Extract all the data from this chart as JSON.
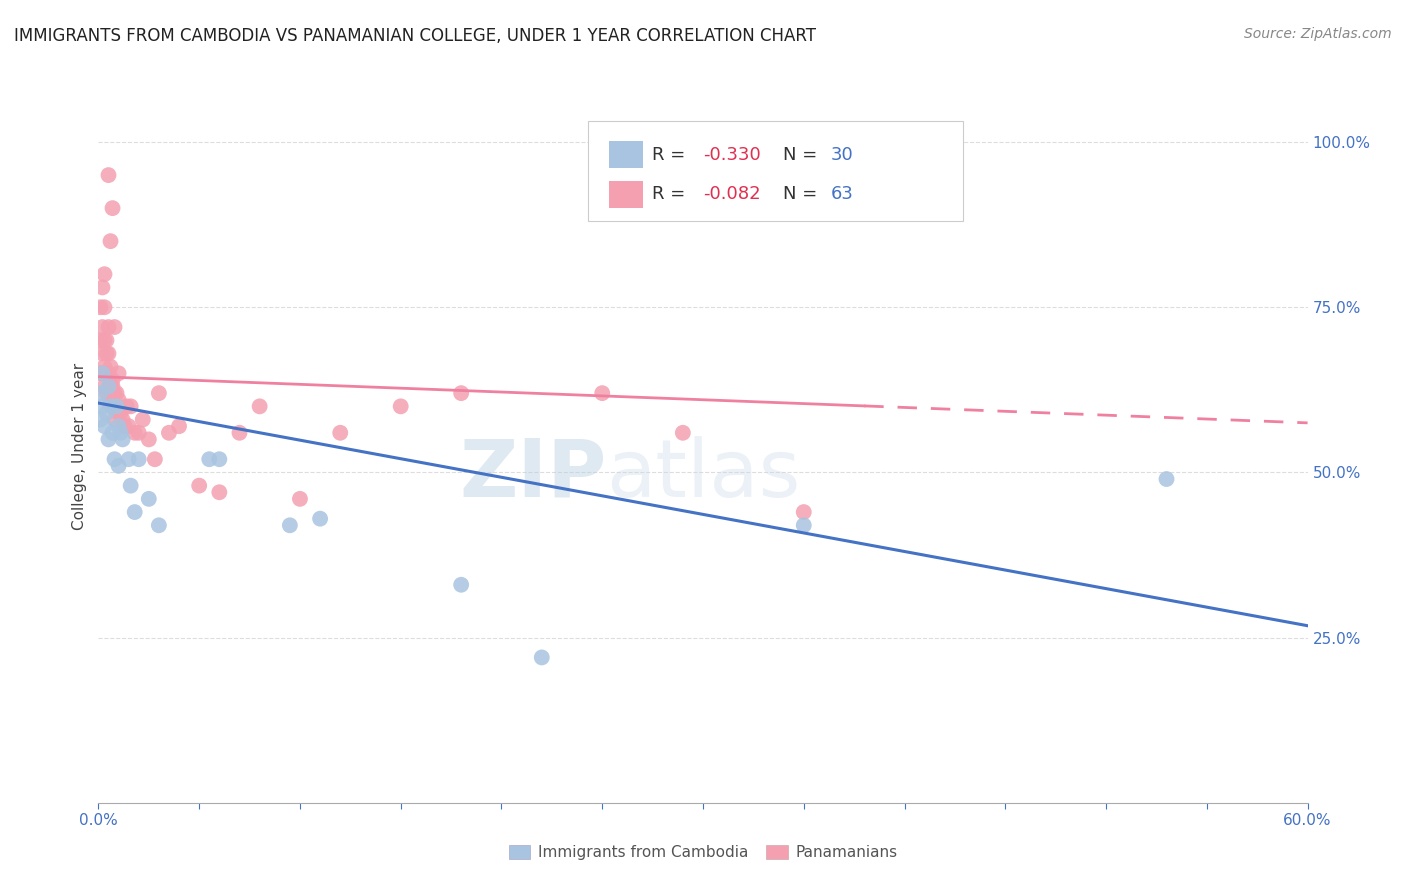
{
  "title": "IMMIGRANTS FROM CAMBODIA VS PANAMANIAN COLLEGE, UNDER 1 YEAR CORRELATION CHART",
  "source": "Source: ZipAtlas.com",
  "ylabel": "College, Under 1 year",
  "xlim": [
    0.0,
    0.6
  ],
  "ylim": [
    0.0,
    1.08
  ],
  "color_blue": "#a8c4e0",
  "color_pink": "#f4a0b0",
  "line_color_blue": "#4472c4",
  "line_color_pink": "#f080a0",
  "watermark_zip": "ZIP",
  "watermark_atlas": "atlas",
  "legend_entries": [
    "Immigrants from Cambodia",
    "Panamanians"
  ],
  "cambodia_x": [
    0.001,
    0.001,
    0.002,
    0.002,
    0.003,
    0.004,
    0.005,
    0.005,
    0.006,
    0.007,
    0.008,
    0.009,
    0.01,
    0.01,
    0.011,
    0.012,
    0.015,
    0.016,
    0.018,
    0.02,
    0.025,
    0.03,
    0.055,
    0.06,
    0.095,
    0.11,
    0.18,
    0.22,
    0.35,
    0.53
  ],
  "cambodia_y": [
    0.62,
    0.58,
    0.65,
    0.6,
    0.57,
    0.59,
    0.55,
    0.63,
    0.6,
    0.56,
    0.52,
    0.6,
    0.57,
    0.51,
    0.56,
    0.55,
    0.52,
    0.48,
    0.44,
    0.52,
    0.46,
    0.42,
    0.52,
    0.52,
    0.42,
    0.43,
    0.33,
    0.22,
    0.42,
    0.49
  ],
  "panama_x": [
    0.001,
    0.001,
    0.001,
    0.002,
    0.002,
    0.002,
    0.002,
    0.003,
    0.003,
    0.003,
    0.003,
    0.004,
    0.004,
    0.004,
    0.005,
    0.005,
    0.005,
    0.005,
    0.006,
    0.006,
    0.006,
    0.007,
    0.007,
    0.007,
    0.008,
    0.008,
    0.008,
    0.009,
    0.009,
    0.01,
    0.01,
    0.01,
    0.011,
    0.012,
    0.013,
    0.014,
    0.015,
    0.016,
    0.018,
    0.02,
    0.022,
    0.025,
    0.028,
    0.03,
    0.035,
    0.04,
    0.05,
    0.06,
    0.07,
    0.08,
    0.1,
    0.12,
    0.15,
    0.18,
    0.003,
    0.004,
    0.005,
    0.006,
    0.007,
    0.008,
    0.25,
    0.29,
    0.35
  ],
  "panama_y": [
    0.65,
    0.7,
    0.75,
    0.65,
    0.68,
    0.72,
    0.78,
    0.63,
    0.66,
    0.7,
    0.8,
    0.62,
    0.65,
    0.68,
    0.62,
    0.65,
    0.68,
    0.95,
    0.61,
    0.63,
    0.85,
    0.6,
    0.63,
    0.9,
    0.6,
    0.62,
    0.72,
    0.6,
    0.62,
    0.59,
    0.61,
    0.65,
    0.59,
    0.58,
    0.57,
    0.6,
    0.57,
    0.6,
    0.56,
    0.56,
    0.58,
    0.55,
    0.52,
    0.62,
    0.56,
    0.57,
    0.48,
    0.47,
    0.56,
    0.6,
    0.46,
    0.56,
    0.6,
    0.62,
    0.75,
    0.7,
    0.72,
    0.66,
    0.64,
    0.58,
    0.62,
    0.56,
    0.44
  ],
  "cam_line_x0": 0.0,
  "cam_line_y0": 0.605,
  "cam_line_x1": 0.6,
  "cam_line_y1": 0.268,
  "pan_line_x0": 0.0,
  "pan_line_y0": 0.645,
  "pan_line_x1": 0.6,
  "pan_line_y1": 0.575,
  "pan_line_solid_end": 0.38,
  "title_fontsize": 12,
  "axis_label_fontsize": 11,
  "legend_fontsize": 13
}
